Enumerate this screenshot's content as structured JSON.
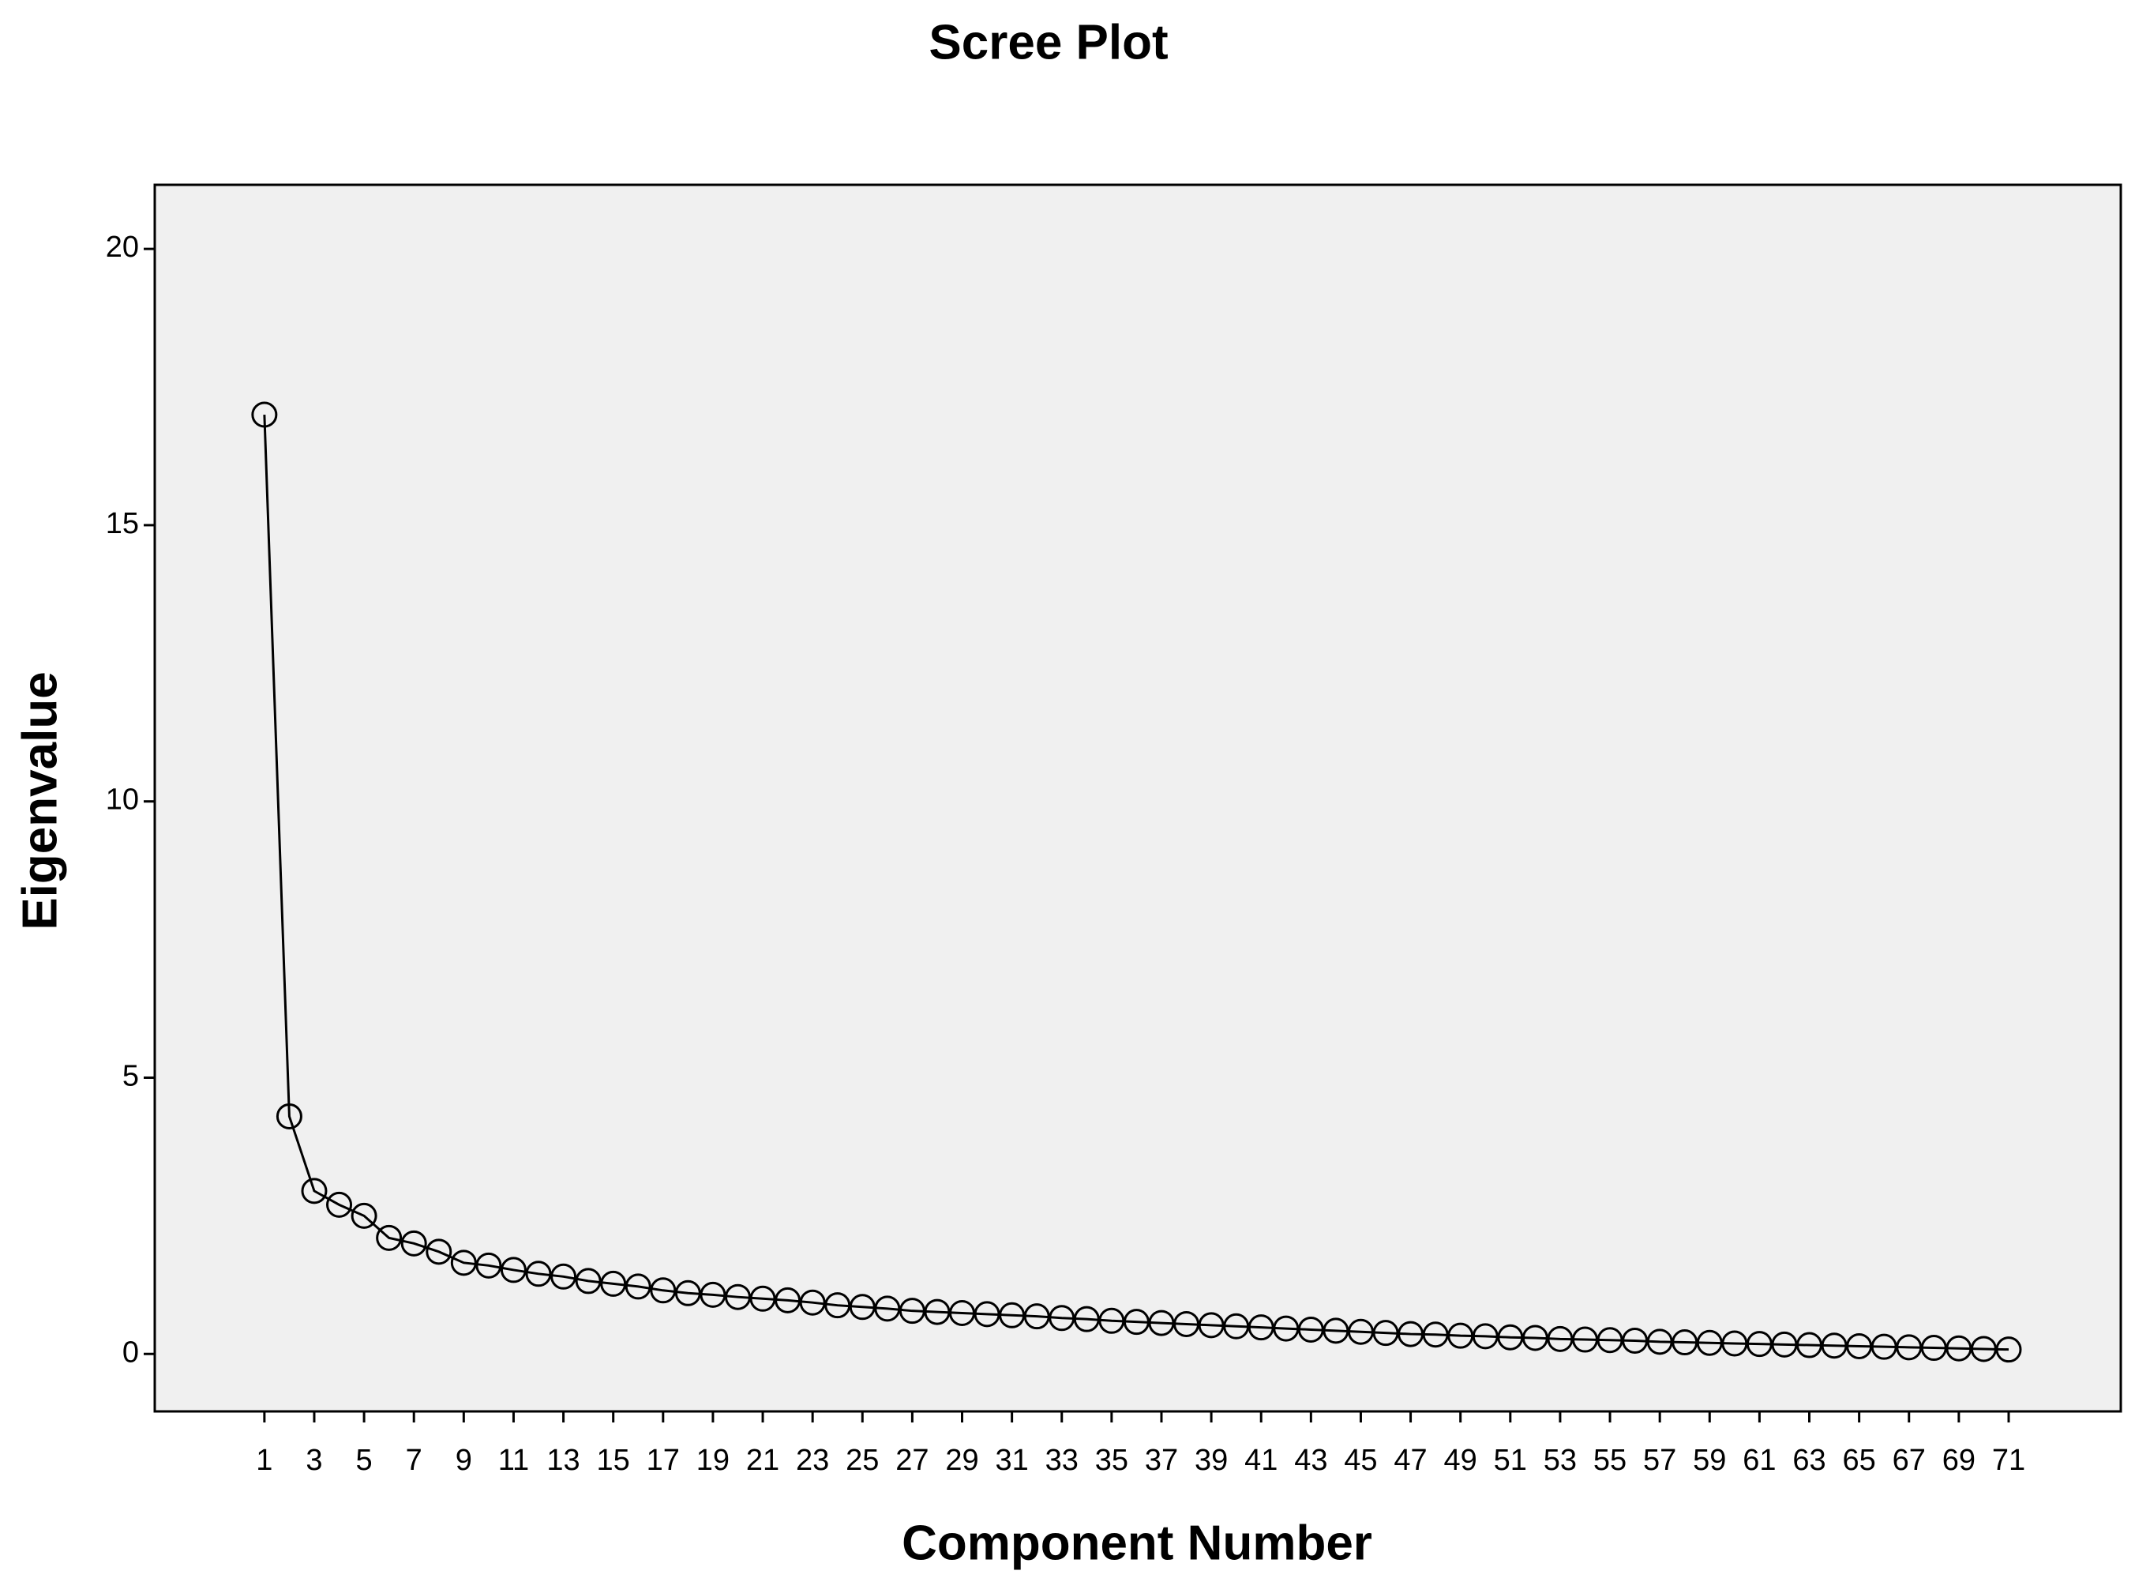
{
  "chart_data": {
    "type": "line",
    "title": "Scree Plot",
    "x_label": "Component Number",
    "y_label": "Eigenvalue",
    "x": [
      1,
      2,
      3,
      4,
      5,
      6,
      7,
      8,
      9,
      10,
      11,
      12,
      13,
      14,
      15,
      16,
      17,
      18,
      19,
      20,
      21,
      22,
      23,
      24,
      25,
      26,
      27,
      28,
      29,
      30,
      31,
      32,
      33,
      34,
      35,
      36,
      37,
      38,
      39,
      40,
      41,
      42,
      43,
      44,
      45,
      46,
      47,
      48,
      49,
      50,
      51,
      52,
      53,
      54,
      55,
      56,
      57,
      58,
      59,
      60,
      61,
      62,
      63,
      64,
      65,
      66,
      67,
      68,
      69,
      70,
      71
    ],
    "values": [
      17.0,
      4.3,
      2.95,
      2.7,
      2.5,
      2.1,
      2.0,
      1.85,
      1.65,
      1.6,
      1.52,
      1.45,
      1.4,
      1.32,
      1.27,
      1.22,
      1.15,
      1.1,
      1.07,
      1.03,
      1.0,
      0.97,
      0.93,
      0.88,
      0.85,
      0.82,
      0.78,
      0.76,
      0.74,
      0.72,
      0.7,
      0.68,
      0.65,
      0.63,
      0.6,
      0.58,
      0.56,
      0.54,
      0.52,
      0.5,
      0.48,
      0.46,
      0.44,
      0.42,
      0.4,
      0.38,
      0.36,
      0.35,
      0.33,
      0.32,
      0.3,
      0.29,
      0.27,
      0.26,
      0.25,
      0.24,
      0.22,
      0.21,
      0.2,
      0.19,
      0.18,
      0.17,
      0.16,
      0.15,
      0.14,
      0.13,
      0.12,
      0.11,
      0.1,
      0.09,
      0.08
    ],
    "color": "#000000",
    "xlim": [
      -3.4,
      75.5
    ],
    "xticks": [
      1,
      3,
      5,
      7,
      9,
      11,
      13,
      15,
      17,
      19,
      21,
      23,
      25,
      27,
      29,
      31,
      33,
      35,
      37,
      39,
      41,
      43,
      45,
      47,
      49,
      51,
      53,
      55,
      57,
      59,
      61,
      63,
      65,
      67,
      69,
      71
    ],
    "ylim": [
      -1.04,
      21.16
    ],
    "yticks": [
      0,
      5,
      10,
      15,
      20
    ]
  }
}
